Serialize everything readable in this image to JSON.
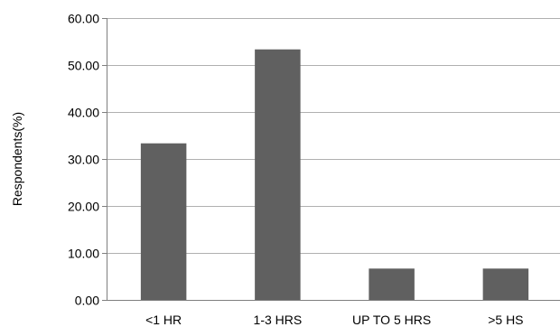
{
  "chart_data": {
    "type": "bar",
    "title": "",
    "xlabel": "",
    "ylabel": "Respondents(%)",
    "categories": [
      "<1 HR",
      "1-3 HRS",
      "UP TO 5 HRS",
      ">5 HS"
    ],
    "values": [
      33.33,
      53.33,
      6.67,
      6.67
    ],
    "ylim": [
      0,
      60
    ],
    "yticks": [
      0,
      10,
      20,
      30,
      40,
      50,
      60
    ],
    "ytick_labels": [
      "0.00",
      "10.00",
      "20.00",
      "30.00",
      "40.00",
      "50.00",
      "60.00"
    ],
    "grid": true,
    "legend": "none",
    "bar_color": "#606060",
    "grid_color": "#b0b0b0",
    "axis_color": "#7f7f7f"
  }
}
